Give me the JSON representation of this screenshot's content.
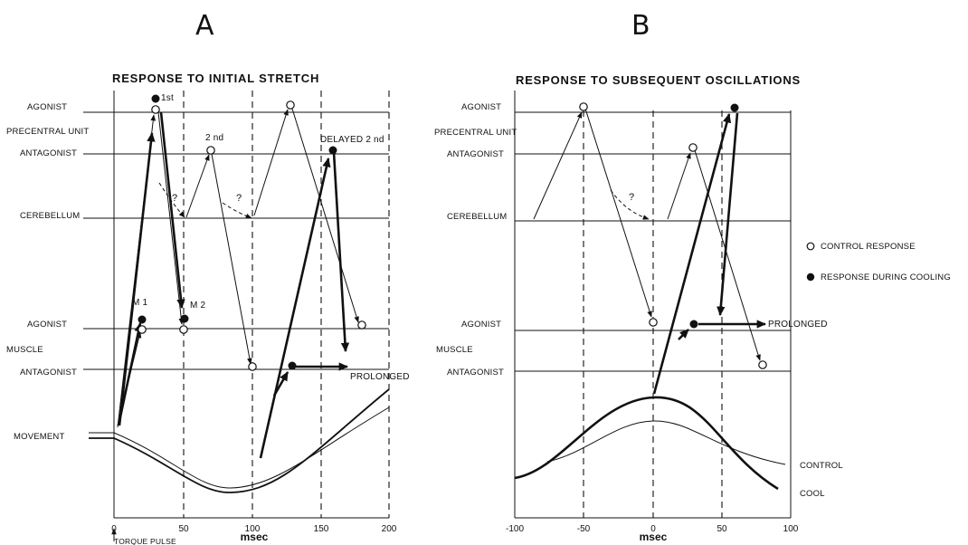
{
  "panel_a": {
    "letter": "A",
    "title": "RESPONSE TO INITIAL STRETCH",
    "row_labels": {
      "agonist_top": "AGONIST",
      "precentral_unit": "PRECENTRAL UNIT",
      "antagonist_top": "ANTAGONIST",
      "cerebellum": "CEREBELLUM",
      "agonist_bottom": "AGONIST",
      "muscle": "MUSCLE",
      "antagonist_bottom": "ANTAGONIST",
      "movement": "MOVEMENT"
    },
    "x_ticks": [
      "0",
      "50",
      "100",
      "150",
      "200"
    ],
    "x_unit": "msec",
    "annotations": {
      "first": "1st",
      "second": "2 nd",
      "delayed_second": "DELAYED 2 nd",
      "m1": "M 1",
      "m2": "M 2",
      "prolonged": "PROLONGED",
      "question": "?",
      "torque_pulse": "TORQUE PULSE"
    }
  },
  "panel_b": {
    "letter": "B",
    "title": "RESPONSE TO SUBSEQUENT OSCILLATIONS",
    "row_labels": {
      "agonist_top": "AGONIST",
      "precentral_unit": "PRECENTRAL UNIT",
      "antagonist_top": "ANTAGONIST",
      "cerebellum": "CEREBELLUM",
      "agonist_bottom": "AGONIST",
      "muscle": "MUSCLE",
      "antagonist_bottom": "ANTAGONIST"
    },
    "x_ticks": [
      "-100",
      "-50",
      "0",
      "50",
      "100"
    ],
    "x_unit": "msec",
    "annotations": {
      "prolonged": "PROLONGED",
      "question": "?",
      "control": "CONTROL",
      "cool": "COOL"
    }
  },
  "legend": {
    "control_response": "CONTROL RESPONSE",
    "response_during_cooling": "RESPONSE DURING COOLING"
  }
}
